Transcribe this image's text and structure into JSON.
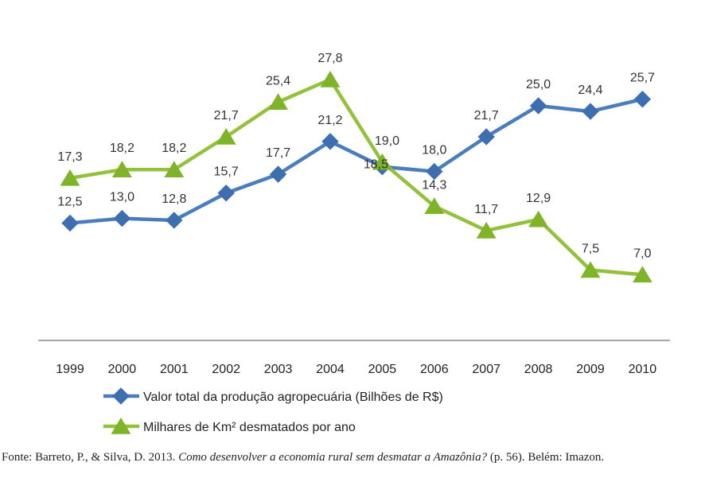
{
  "chart_data": {
    "type": "line",
    "categories": [
      "1999",
      "2000",
      "2001",
      "2002",
      "2003",
      "2004",
      "2005",
      "2006",
      "2007",
      "2008",
      "2009",
      "2010"
    ],
    "series": [
      {
        "name": "Valor total da produção agropecuária (Bilhões de R$)",
        "marker": "diamond",
        "color": "#4a7dbb",
        "marker_color": "#3d6fb0",
        "values": [
          12.5,
          13.0,
          12.8,
          15.7,
          17.7,
          21.2,
          18.5,
          18.0,
          21.7,
          25.0,
          24.4,
          25.7
        ],
        "labels": [
          "12,5",
          "13,0",
          "12,8",
          "15,7",
          "17,7",
          "21,2",
          "18,5",
          "18,0",
          "21,7",
          "25,0",
          "24,4",
          "25,7"
        ]
      },
      {
        "name": "Milhares de Km² desmatados por ano",
        "marker": "triangle",
        "color": "#93c13c",
        "marker_color": "#7fb32a",
        "values": [
          17.3,
          18.2,
          18.2,
          21.7,
          25.4,
          27.8,
          19.0,
          14.3,
          11.7,
          12.9,
          7.5,
          7.0
        ],
        "labels": [
          "17,3",
          "18,2",
          "18,2",
          "21,7",
          "25,4",
          "27,8",
          "19,0",
          "14,3",
          "11,7",
          "12,9",
          "7,5",
          "7,0"
        ]
      }
    ],
    "ylim": [
      0,
      30
    ],
    "grid": false,
    "legend_position": "bottom"
  },
  "source": {
    "prefix": "Fonte: Barreto, P., & Silva, D. 2013. ",
    "title": "Como desenvolver a economia rural sem desmatar a Amazônia?",
    "suffix": " (p. 56). Belém: Imazon."
  }
}
